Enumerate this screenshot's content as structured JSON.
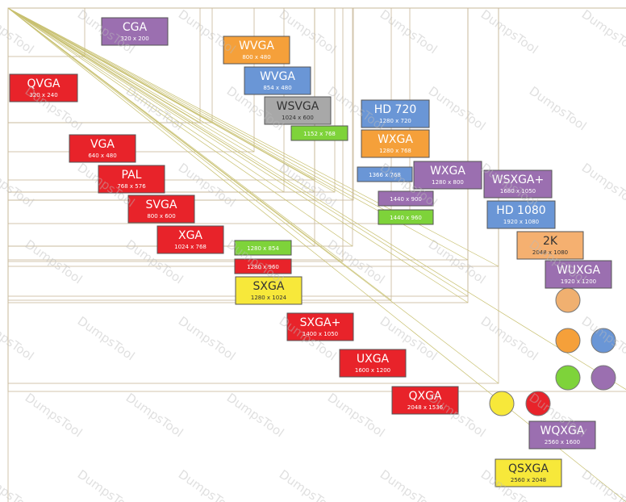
{
  "watermark": "DumpsTool",
  "nodes": [
    {
      "name": "CGA",
      "resolution": "320 x 200",
      "color": "#9b6fb0"
    },
    {
      "name": "WVGA",
      "resolution": "800 x 480",
      "color": "#f5a03a"
    },
    {
      "name": "QVGA",
      "resolution": "320 x 240",
      "color": "#e8232a"
    },
    {
      "name": "WVGA",
      "resolution": "854 x 480",
      "color": "#6a96d6"
    },
    {
      "name": "WSVGA",
      "resolution": "1024 x 600",
      "color": "#a8a8a8"
    },
    {
      "name": "HD 720",
      "resolution": "1280 x 720",
      "color": "#6a96d6"
    },
    {
      "resolution": "1152 x 768",
      "color": "#7ed33a"
    },
    {
      "name": "WXGA",
      "resolution": "1280 x 768",
      "color": "#f5a03a"
    },
    {
      "name": "VGA",
      "resolution": "640 x 480",
      "color": "#e8232a"
    },
    {
      "name": "PAL",
      "resolution": "768 x 576",
      "color": "#e8232a"
    },
    {
      "resolution": "1366 x 768",
      "color": "#6a96d6"
    },
    {
      "name": "WXGA",
      "resolution": "1280 x 800",
      "color": "#9b6fb0"
    },
    {
      "name": "WSXGA+",
      "resolution": "1680 x 1050",
      "color": "#9b6fb0"
    },
    {
      "resolution": "1440 x 900",
      "color": "#9b6fb0"
    },
    {
      "name": "SVGA",
      "resolution": "800 x 600",
      "color": "#e8232a"
    },
    {
      "name": "HD 1080",
      "resolution": "1920 x 1080",
      "color": "#6a96d6"
    },
    {
      "resolution": "1440 x 960",
      "color": "#7ed33a"
    },
    {
      "name": "2K",
      "resolution": "2048 x 1080",
      "color": "#f5b070"
    },
    {
      "name": "XGA",
      "resolution": "1024 x 768",
      "color": "#e8232a"
    },
    {
      "resolution": "1280 x 854",
      "color": "#7ed33a"
    },
    {
      "resolution": "1280 x 960",
      "color": "#e8232a"
    },
    {
      "name": "WUXGA",
      "resolution": "1920 x 1200",
      "color": "#9b6fb0"
    },
    {
      "name": "SXGA",
      "resolution": "1280 x 1024",
      "color": "#f7e83a"
    },
    {
      "name": "SXGA+",
      "resolution": "1400 x 1050",
      "color": "#e8232a"
    },
    {
      "name": "UXGA",
      "resolution": "1600 x 1200",
      "color": "#e8232a"
    },
    {
      "name": "QXGA",
      "resolution": "2048 x 1536",
      "color": "#e8232a"
    },
    {
      "name": "WQXGA",
      "resolution": "2560 x 1600",
      "color": "#9b6fb0"
    },
    {
      "name": "QSXGA",
      "resolution": "2560 x 2048",
      "color": "#f7e83a"
    }
  ]
}
